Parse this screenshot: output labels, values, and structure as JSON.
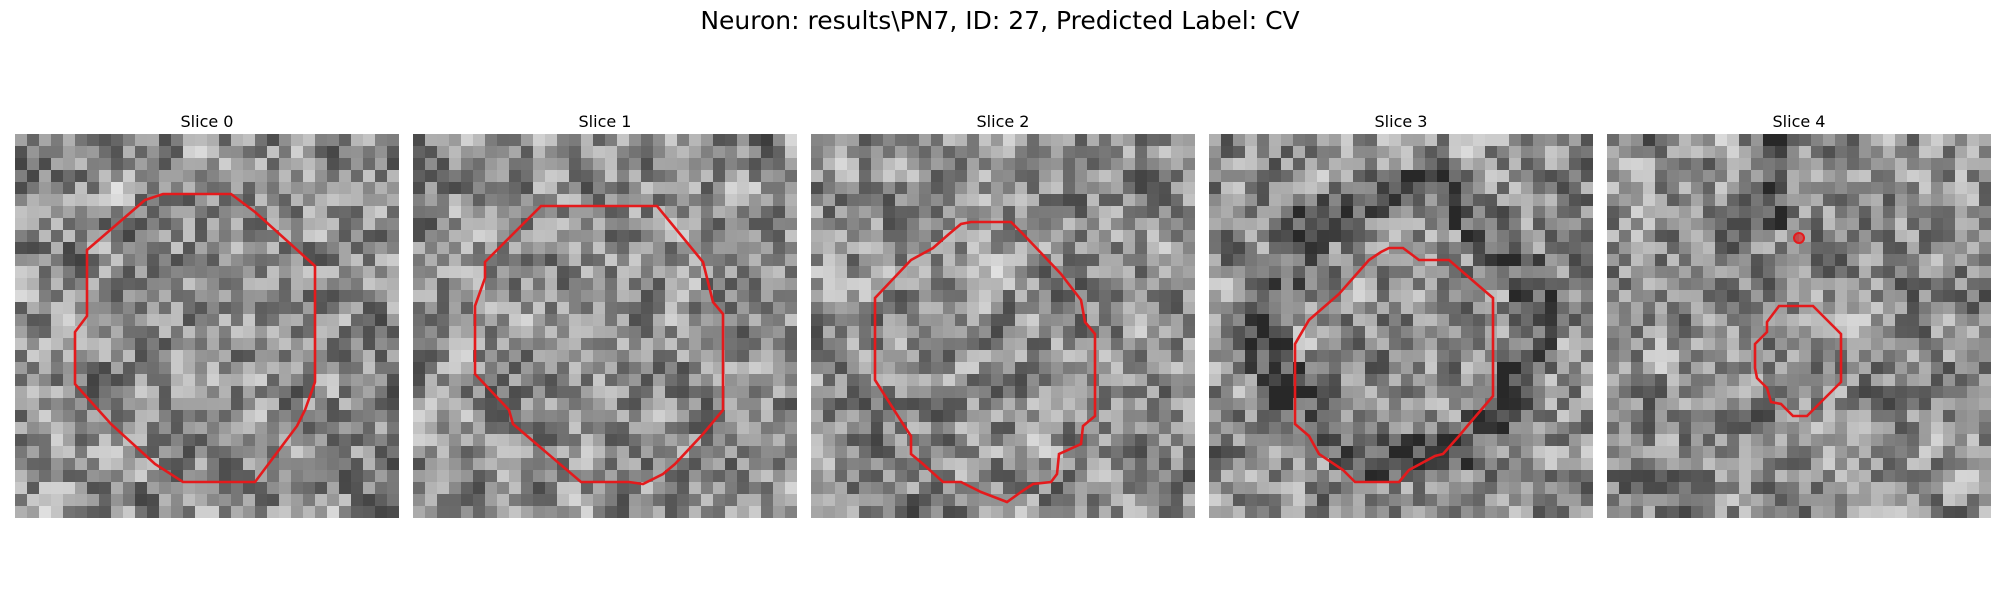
{
  "figure": {
    "title": "Neuron: results\\PN7, ID: 27, Predicted Label: CV"
  },
  "panels": [
    {
      "title": "Slice 0"
    },
    {
      "title": "Slice 1"
    },
    {
      "title": "Slice 2"
    },
    {
      "title": "Slice 3"
    },
    {
      "title": "Slice 4"
    }
  ],
  "colors": {
    "contour": "#e41a1c",
    "background": "#ffffff"
  }
}
